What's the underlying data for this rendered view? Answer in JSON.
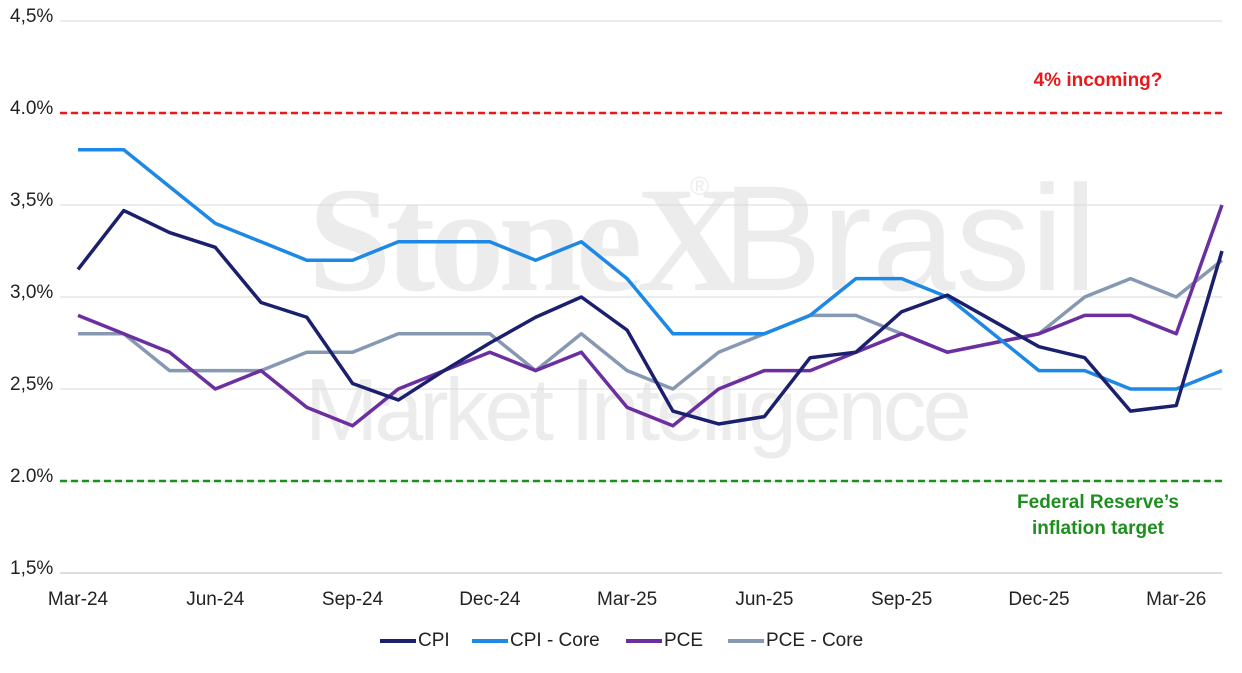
{
  "chart_data": {
    "type": "line",
    "watermark": {
      "brand": "StoneX",
      "mark": "®",
      "region": "Brasil",
      "subtitle": "Market Intelligence"
    },
    "categories": [
      "Mar-24",
      null,
      null,
      "Jun-24",
      null,
      null,
      "Sep-24",
      null,
      null,
      "Dec-24",
      null,
      null,
      "Mar-25",
      null,
      null,
      "Jun-25",
      null,
      null,
      "Sep-25",
      null,
      null,
      "Dec-25",
      null,
      null,
      "Mar-26",
      null
    ],
    "series": [
      {
        "name": "CPI",
        "color": "#1a1f6e",
        "values": [
          3.15,
          3.47,
          3.35,
          3.27,
          2.97,
          2.89,
          2.53,
          2.44,
          2.6,
          2.75,
          2.89,
          3.0,
          2.82,
          2.38,
          2.31,
          2.35,
          2.67,
          2.7,
          2.92,
          3.01,
          2.87,
          2.73,
          2.67,
          2.38,
          2.41,
          3.25
        ]
      },
      {
        "name": "CPI - Core",
        "color": "#1e88e5",
        "values": [
          3.8,
          3.8,
          3.6,
          3.4,
          3.3,
          3.2,
          3.2,
          3.3,
          3.3,
          3.3,
          3.2,
          3.3,
          3.1,
          2.8,
          2.8,
          2.8,
          2.9,
          3.1,
          3.1,
          3.0,
          2.8,
          2.6,
          2.6,
          2.5,
          2.5,
          2.6
        ]
      },
      {
        "name": "PCE",
        "color": "#6b2fa0",
        "values": [
          2.9,
          2.8,
          2.7,
          2.5,
          2.6,
          2.4,
          2.3,
          2.5,
          2.6,
          2.7,
          2.6,
          2.7,
          2.4,
          2.3,
          2.5,
          2.6,
          2.6,
          2.7,
          2.8,
          2.7,
          2.75,
          2.8,
          2.9,
          2.9,
          2.8,
          3.5
        ]
      },
      {
        "name": "PCE - Core",
        "color": "#8798b3",
        "values": [
          2.8,
          2.8,
          2.6,
          2.6,
          2.6,
          2.7,
          2.7,
          2.8,
          2.8,
          2.8,
          2.6,
          2.8,
          2.6,
          2.5,
          2.7,
          2.8,
          2.9,
          2.9,
          2.8,
          2.7,
          2.75,
          2.8,
          3.0,
          3.1,
          3.0,
          3.2
        ]
      }
    ],
    "ylim": [
      1.5,
      4.5
    ],
    "yticks": [
      {
        "value": 1.5,
        "label": "1,5%"
      },
      {
        "value": 2.0,
        "label": "2.0%"
      },
      {
        "value": 2.5,
        "label": "2,5%"
      },
      {
        "value": 3.0,
        "label": "3,0%"
      },
      {
        "value": 3.5,
        "label": "3,5%"
      },
      {
        "value": 4.0,
        "label": "4.0%"
      },
      {
        "value": 4.5,
        "label": "4,5%"
      }
    ],
    "grid": true,
    "reference_lines": [
      {
        "value": 4.0,
        "color": "#e8191c",
        "label_lines": [
          "4% incoming?"
        ]
      },
      {
        "value": 2.0,
        "color": "#1e8f1e",
        "label_lines": [
          "Federal Reserve’s",
          "inflation target"
        ]
      }
    ],
    "legend": "bottom"
  }
}
